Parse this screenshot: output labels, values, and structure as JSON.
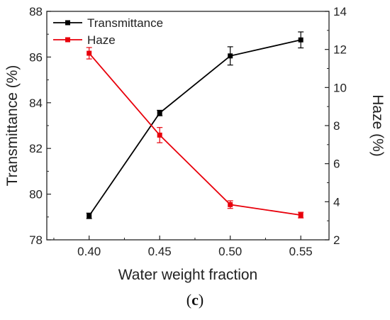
{
  "chart_data": {
    "type": "line",
    "title": "",
    "xlabel": "Water weight fraction",
    "ylabel_left": "Transmittance (%)",
    "ylabel_right": "Haze (%)",
    "x": [
      0.4,
      0.45,
      0.5,
      0.55
    ],
    "x_ticks": [
      "0.40",
      "0.45",
      "0.50",
      "0.55"
    ],
    "xlim": [
      0.37,
      0.57
    ],
    "ylim_left": [
      78,
      88
    ],
    "y_ticks_left": [
      "78",
      "80",
      "82",
      "84",
      "86",
      "88"
    ],
    "ylim_right": [
      2,
      14
    ],
    "y_ticks_right": [
      "2",
      "4",
      "6",
      "8",
      "10",
      "12",
      "14"
    ],
    "grid": false,
    "legend_position": "top-left",
    "series": [
      {
        "name": "Transmittance",
        "axis": "left",
        "color": "#000000",
        "marker": "square",
        "values": [
          79.05,
          83.55,
          86.05,
          86.75
        ],
        "errors": [
          0.12,
          0.12,
          0.4,
          0.35
        ]
      },
      {
        "name": "Haze",
        "axis": "right",
        "color": "#e8000b",
        "marker": "square",
        "values": [
          11.8,
          7.5,
          3.85,
          3.3
        ],
        "errors": [
          0.3,
          0.4,
          0.2,
          0.15
        ]
      }
    ]
  },
  "caption": {
    "open": "(",
    "letter": "c",
    "close": ")"
  }
}
